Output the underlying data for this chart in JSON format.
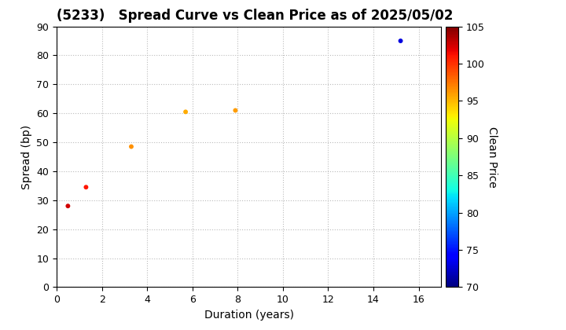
{
  "title": "(5233)   Spread Curve vs Clean Price as of 2025/05/02",
  "xlabel": "Duration (years)",
  "ylabel": "Spread (bp)",
  "colorbar_label": "Clean Price",
  "points": [
    {
      "duration": 0.5,
      "spread": 28,
      "price": 102.5
    },
    {
      "duration": 1.3,
      "spread": 34.5,
      "price": 101.0
    },
    {
      "duration": 3.3,
      "spread": 48.5,
      "price": 96.5
    },
    {
      "duration": 5.7,
      "spread": 60.5,
      "price": 95.5
    },
    {
      "duration": 7.9,
      "spread": 61.0,
      "price": 96.0
    },
    {
      "duration": 15.2,
      "spread": 85.0,
      "price": 73.0
    }
  ],
  "xlim": [
    0,
    17
  ],
  "ylim": [
    0,
    90
  ],
  "xticks": [
    0,
    2,
    4,
    6,
    8,
    10,
    12,
    14,
    16
  ],
  "yticks": [
    0,
    10,
    20,
    30,
    40,
    50,
    60,
    70,
    80,
    90
  ],
  "cmap": "jet",
  "clim": [
    70,
    105
  ],
  "cticks": [
    70,
    75,
    80,
    85,
    90,
    95,
    100,
    105
  ],
  "marker_size": 18,
  "bg_color": "#ffffff",
  "grid_color": "#bbbbbb",
  "title_fontsize": 12,
  "label_fontsize": 10,
  "tick_fontsize": 9
}
